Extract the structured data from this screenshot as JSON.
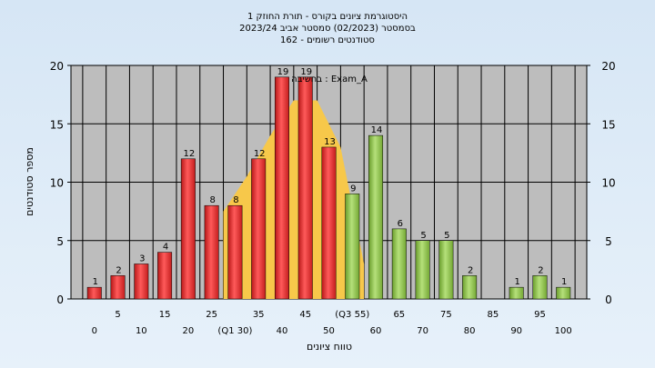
{
  "chart_data": {
    "type": "bar",
    "title": [
      "היסטוגרמת ציונים בקורס - תורת החוזק 1",
      "בסמסטר  (02/2023)  סמסטר אביב 2023/24",
      "162 - סטודנטים רשומים"
    ],
    "xlabel": "טווח ציונים",
    "ylabel": "מספר סטודנטים",
    "annotation": "בחשיבה : Exam_A",
    "ylim": [
      0,
      20
    ],
    "yticks": [
      0,
      5,
      10,
      15,
      20
    ],
    "categories": [
      "0",
      "5",
      "10",
      "15",
      "20",
      "25",
      "30",
      "35",
      "40",
      "45",
      "50",
      "55",
      "60",
      "65",
      "70",
      "75",
      "80",
      "85",
      "90",
      "95",
      "100"
    ],
    "values": [
      1,
      2,
      3,
      4,
      12,
      8,
      8,
      12,
      19,
      19,
      13,
      9,
      14,
      6,
      5,
      5,
      2,
      0,
      1,
      2,
      1
    ],
    "bar_colors": [
      "red",
      "red",
      "red",
      "red",
      "red",
      "red",
      "red",
      "red",
      "red",
      "red",
      "red",
      "green",
      "green",
      "green",
      "green",
      "green",
      "green",
      "green",
      "green",
      "green",
      "green"
    ],
    "xtick_labels_odd": [
      "5",
      "15",
      "25",
      "35",
      "45",
      "(Q3 55)",
      "65",
      "75",
      "85",
      "95"
    ],
    "xtick_labels_even": [
      "0",
      "10",
      "20",
      "(Q1 30)",
      "40",
      "50",
      "60",
      "70",
      "80",
      "90",
      "100"
    ],
    "quartile_area": {
      "x": [
        "27.5",
        "32.5",
        "37.5",
        "42.5",
        "47.5",
        "52.5",
        "57.5"
      ],
      "y": [
        7.5,
        10.5,
        14,
        17,
        17,
        13,
        3
      ]
    },
    "colors": {
      "red": "#e53030",
      "green": "#8cc24a",
      "area": "#f7c84a",
      "plot_bg": "#bdbdbd",
      "grid": "#000000"
    },
    "grid": true
  }
}
